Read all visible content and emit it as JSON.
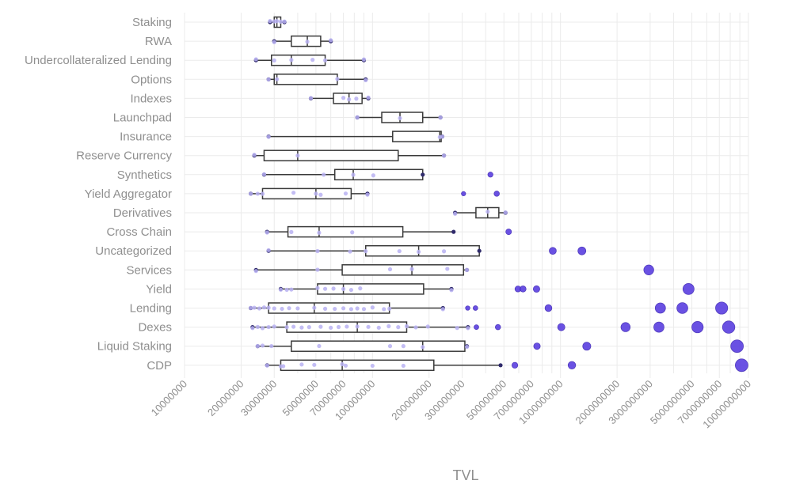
{
  "colors": {
    "inlier_point": "#b9b1f2",
    "outlier_point": "#5a3fe0",
    "box_stroke": "#3a3a3a",
    "grid": "#ebebeb",
    "label_text": "#8f8f8f"
  },
  "chart_data": {
    "type": "boxplot",
    "orientation": "horizontal",
    "xscale": "log",
    "xlim": [
      10000000,
      10000000000
    ],
    "xlabel": "TVL",
    "ylabel": "",
    "grid": true,
    "legend": "none",
    "xticks": [
      10000000,
      20000000,
      30000000,
      50000000,
      70000000,
      100000000,
      200000000,
      300000000,
      500000000,
      700000000,
      1000000000,
      2000000000,
      3000000000,
      5000000000,
      7000000000,
      10000000000
    ],
    "xtick_labels": [
      "10000000",
      "20000000",
      "30000000",
      "50000000",
      "70000000",
      "100000000",
      "200000000",
      "300000000",
      "500000000",
      "700000000",
      "1000000000",
      "2000000000",
      "3000000000",
      "5000000000",
      "7000000000",
      "10000000000"
    ],
    "categories": [
      "Staking",
      "RWA",
      "Undercollateralized Lending",
      "Options",
      "Indexes",
      "Launchpad",
      "Insurance",
      "Reserve Currency",
      "Synthetics",
      "Yield Aggregator",
      "Derivatives",
      "Cross Chain",
      "Uncategorized",
      "Services",
      "Yield",
      "Lending",
      "Dexes",
      "Liquid Staking",
      "CDP"
    ],
    "boxes": [
      {
        "category": "Staking",
        "whisker_low": 28500000,
        "q1": 30000000,
        "median": 31000000,
        "q3": 32500000,
        "whisker_high": 34000000,
        "points": [
          28500000,
          30000000,
          31000000,
          32500000,
          34000000
        ],
        "outliers": []
      },
      {
        "category": "RWA",
        "whisker_low": 30000000,
        "q1": 37000000,
        "median": 45000000,
        "q3": 53000000,
        "whisker_high": 60000000,
        "points": [
          30000000,
          45000000,
          60000000
        ],
        "outliers": []
      },
      {
        "category": "Undercollateralized Lending",
        "whisker_low": 24000000,
        "q1": 29000000,
        "median": 37000000,
        "q3": 56000000,
        "whisker_high": 90000000,
        "points": [
          24000000,
          30000000,
          37000000,
          48000000,
          56000000,
          90000000
        ],
        "outliers": []
      },
      {
        "category": "Options",
        "whisker_low": 28000000,
        "q1": 30000000,
        "median": 31000000,
        "q3": 65000000,
        "whisker_high": 92000000,
        "points": [
          28000000,
          31000000,
          65000000,
          92000000
        ],
        "outliers": []
      },
      {
        "category": "Indexes",
        "whisker_low": 47000000,
        "q1": 62000000,
        "median": 75000000,
        "q3": 88000000,
        "whisker_high": 95000000,
        "points": [
          47000000,
          70000000,
          75000000,
          82000000,
          95000000
        ],
        "outliers": []
      },
      {
        "category": "Launchpad",
        "whisker_low": 83000000,
        "q1": 112000000,
        "median": 140000000,
        "q3": 185000000,
        "whisker_high": 230000000,
        "points": [
          83000000,
          140000000,
          230000000
        ],
        "outliers": []
      },
      {
        "category": "Insurance",
        "whisker_low": 28000000,
        "q1": 128000000,
        "median": 228000000,
        "q3": 232000000,
        "whisker_high": 235000000,
        "points": [
          28000000,
          228000000,
          235000000
        ],
        "outliers": []
      },
      {
        "category": "Reserve Currency",
        "whisker_low": 23500000,
        "q1": 26500000,
        "median": 40000000,
        "q3": 137000000,
        "whisker_high": 240000000,
        "points": [
          23500000,
          40000000,
          240000000
        ],
        "outliers": []
      },
      {
        "category": "Synthetics",
        "whisker_low": 26500000,
        "q1": 63000000,
        "median": 79000000,
        "q3": 185000000,
        "whisker_high": 185000000,
        "points": [
          26500000,
          55000000,
          79000000,
          101000000
        ],
        "outliers": [
          424000000
        ]
      },
      {
        "category": "Yield Aggregator",
        "whisker_low": 22500000,
        "q1": 26000000,
        "median": 50000000,
        "q3": 77000000,
        "whisker_high": 94000000,
        "points": [
          22500000,
          24500000,
          26000000,
          38000000,
          50000000,
          53000000,
          72000000,
          94000000
        ],
        "outliers": [
          305000000,
          458000000
        ]
      },
      {
        "category": "Derivatives",
        "whisker_low": 275000000,
        "q1": 355000000,
        "median": 410000000,
        "q3": 470000000,
        "whisker_high": 510000000,
        "points": [
          275000000,
          410000000,
          510000000
        ],
        "outliers": []
      },
      {
        "category": "Cross Chain",
        "whisker_low": 27500000,
        "q1": 35500000,
        "median": 52000000,
        "q3": 145000000,
        "whisker_high": 270000000,
        "points": [
          27500000,
          37000000,
          52000000,
          78000000
        ],
        "outliers": [
          530000000
        ]
      },
      {
        "category": "Uncategorized",
        "whisker_low": 28000000,
        "q1": 92000000,
        "median": 176000000,
        "q3": 370000000,
        "whisker_high": 370000000,
        "points": [
          28000000,
          51000000,
          76000000,
          92000000,
          139000000,
          176000000,
          240000000
        ],
        "outliers": [
          910000000,
          1300000000
        ]
      },
      {
        "category": "Services",
        "whisker_low": 24000000,
        "q1": 69000000,
        "median": 162000000,
        "q3": 305000000,
        "whisker_high": 318000000,
        "points": [
          24000000,
          51000000,
          124000000,
          162000000,
          250000000,
          318000000
        ],
        "outliers": [
          2950000000
        ]
      },
      {
        "category": "Yield",
        "whisker_low": 32500000,
        "q1": 51000000,
        "median": 70000000,
        "q3": 187000000,
        "whisker_high": 263000000,
        "points": [
          32500000,
          35000000,
          37000000,
          51000000,
          56000000,
          62000000,
          70000000,
          77000000,
          86000000,
          263000000
        ],
        "outliers": [
          594000000,
          632000000,
          746000000,
          4800000000
        ]
      },
      {
        "category": "Lending",
        "whisker_low": 22500000,
        "q1": 28000000,
        "median": 49000000,
        "q3": 123000000,
        "whisker_high": 237000000,
        "points": [
          22500000,
          23500000,
          25000000,
          26500000,
          28000000,
          30000000,
          33000000,
          36000000,
          40000000,
          49000000,
          56000000,
          63000000,
          70000000,
          77000000,
          83000000,
          90000000,
          100000000,
          115000000,
          123000000,
          237000000
        ],
        "outliers": [
          321000000,
          353000000,
          863000000,
          3400000000,
          4450000000,
          7200000000
        ]
      },
      {
        "category": "Dexes",
        "whisker_low": 23000000,
        "q1": 35000000,
        "median": 83000000,
        "q3": 152000000,
        "whisker_high": 322000000,
        "points": [
          23000000,
          24500000,
          26000000,
          28000000,
          30000000,
          35000000,
          38000000,
          42000000,
          46000000,
          53000000,
          60000000,
          66000000,
          73000000,
          83000000,
          95000000,
          108000000,
          122000000,
          137000000,
          152000000,
          170000000,
          197000000,
          282000000,
          322000000
        ],
        "outliers": [
          357000000,
          465000000,
          1010000000,
          2220000000,
          3340000000,
          5360000000,
          7850000000
        ]
      },
      {
        "category": "Liquid Staking",
        "whisker_low": 24500000,
        "q1": 37000000,
        "median": 185000000,
        "q3": 310000000,
        "whisker_high": 318000000,
        "points": [
          24500000,
          26000000,
          29000000,
          52000000,
          124000000,
          146000000,
          185000000,
          318000000
        ],
        "outliers": [
          750000000,
          1380000000,
          8700000000
        ]
      },
      {
        "category": "CDP",
        "whisker_low": 27500000,
        "q1": 32500000,
        "median": 69000000,
        "q3": 212000000,
        "whisker_high": 480000000,
        "points": [
          27500000,
          32500000,
          33500000,
          42000000,
          49000000,
          69000000,
          72000000,
          100000000,
          146000000
        ],
        "outliers": [
          572000000,
          1150000000,
          9200000000
        ]
      }
    ]
  }
}
